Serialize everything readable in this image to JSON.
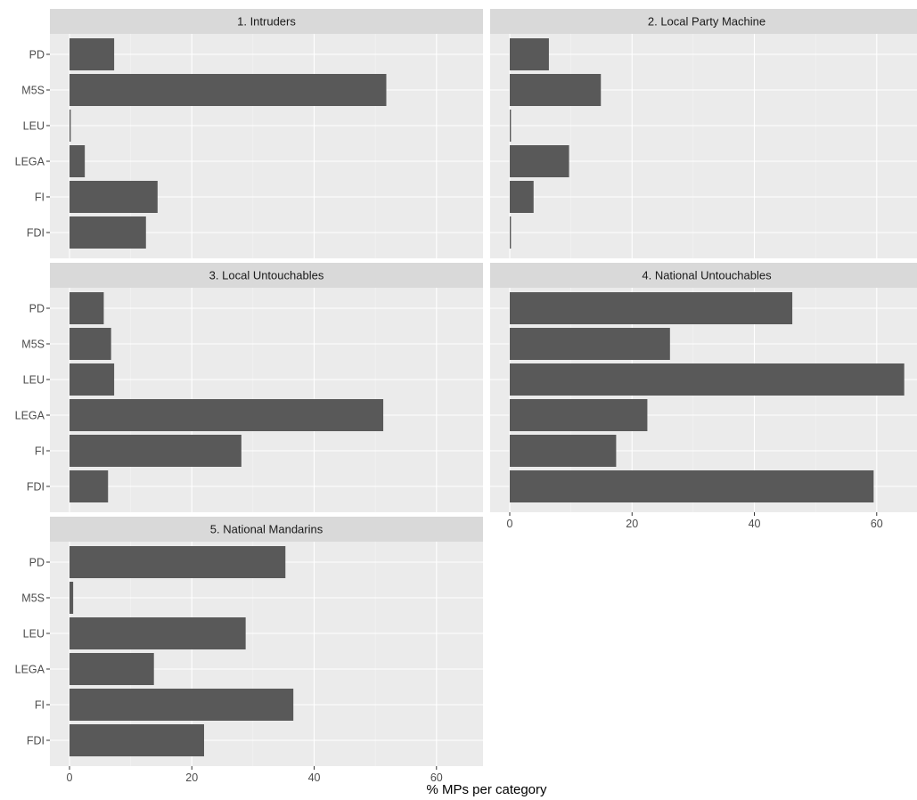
{
  "chart_data": {
    "type": "bar",
    "orientation": "horizontal",
    "facet_layout": "2 columns x 3 rows",
    "categories": [
      "PD",
      "M5S",
      "LEU",
      "LEGA",
      "FI",
      "FDI"
    ],
    "xlabel": "% MPs per category",
    "ylabel": "",
    "xlim": [
      0,
      67
    ],
    "x_ticks": [
      0,
      20,
      40,
      60
    ],
    "grid": true,
    "colors": {
      "bar": "#595959",
      "panel_bg": "#ebebeb",
      "strip_bg": "#d9d9d9",
      "grid_major": "#ffffff",
      "grid_minor": "#f4f4f4"
    },
    "panels": [
      {
        "title": "1. Intruders",
        "values": [
          7.3,
          51.8,
          0.2,
          2.5,
          14.4,
          12.5
        ]
      },
      {
        "title": "2. Local Party Machine",
        "values": [
          6.4,
          14.9,
          0.2,
          9.7,
          3.9,
          0.2
        ]
      },
      {
        "title": "3. Local Untouchables",
        "values": [
          5.6,
          6.8,
          7.3,
          51.3,
          28.1,
          6.3
        ]
      },
      {
        "title": "4. National Untouchables",
        "values": [
          46.2,
          26.2,
          64.5,
          22.5,
          17.4,
          59.5
        ]
      },
      {
        "title": "5. National Mandarins",
        "values": [
          35.3,
          0.6,
          28.8,
          13.8,
          36.6,
          22.0
        ]
      }
    ]
  }
}
